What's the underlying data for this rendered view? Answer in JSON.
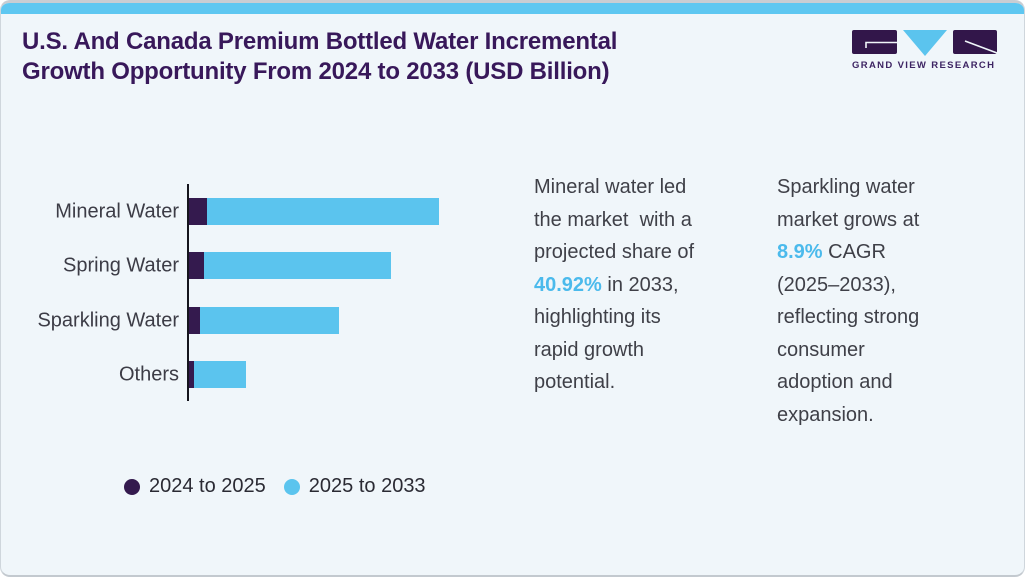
{
  "header": {
    "title": "U.S. And Canada Premium Bottled Water Incremental\nGrowth Opportunity From 2024 to 2033 (USD Billion)",
    "logo_text": "GRAND VIEW RESEARCH"
  },
  "colors": {
    "card_background": "#f0f6fa",
    "top_strip": "#5ec7f1",
    "title_text": "#38185a",
    "body_text": "#3f4048",
    "highlight_blue": "#4bbaec",
    "bar_purple": "#341a4e",
    "bar_blue": "#5bc4ee"
  },
  "chart_data": {
    "type": "bar",
    "orientation": "horizontal",
    "stacked": true,
    "title": "U.S. And Canada Premium Bottled Water Incremental Growth Opportunity From 2024 to 2033 (USD Billion)",
    "categories": [
      "Mineral Water",
      "Spring Water",
      "Sparkling Water",
      "Others"
    ],
    "series": [
      {
        "name": "2024 to 2025",
        "color": "#341a4e",
        "values": [
          7.2,
          6.0,
          4.4,
          2.0
        ]
      },
      {
        "name": "2025 to 2033",
        "color": "#5bc4ee",
        "values": [
          92.8,
          74.8,
          55.6,
          20.8
        ]
      }
    ],
    "value_axis_note": "no numeric axis shown; values are relative bar lengths (longest stacked bar = 100)",
    "legend_position": "bottom-left",
    "grid": false
  },
  "insights": [
    {
      "pre": "Mineral water led\nthe market  with a\nprojected share of\n",
      "highlight": "40.92%",
      "post": " in 2033,\nhighlighting its\nrapid growth\npotential."
    },
    {
      "pre": "Sparkling water\nmarket grows at\n",
      "highlight": "8.9%",
      "post": " CAGR\n(2025–2033),\nreflecting strong\nconsumer\nadoption and\nexpansion."
    }
  ]
}
